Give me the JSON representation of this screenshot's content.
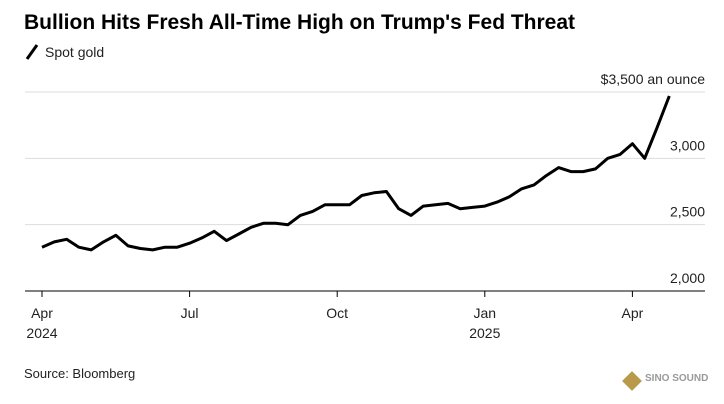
{
  "chart_data": {
    "type": "line",
    "title": "Bullion Hits Fresh All-Time High on Trump's Fed Threat",
    "source": "Source: Bloomberg",
    "watermark": "SINO SOUND",
    "x": [
      "2024-04",
      "2024-04",
      "2024-04",
      "2024-04",
      "2024-05",
      "2024-05",
      "2024-05",
      "2024-05",
      "2024-06",
      "2024-06",
      "2024-06",
      "2024-06",
      "2024-07",
      "2024-07",
      "2024-07",
      "2024-07",
      "2024-08",
      "2024-08",
      "2024-08",
      "2024-08",
      "2024-09",
      "2024-09",
      "2024-09",
      "2024-09",
      "2024-10",
      "2024-10",
      "2024-10",
      "2024-10",
      "2024-11",
      "2024-11",
      "2024-11",
      "2024-11",
      "2024-12",
      "2024-12",
      "2024-12",
      "2024-12",
      "2025-01",
      "2025-01",
      "2025-01",
      "2025-01",
      "2025-02",
      "2025-02",
      "2025-02",
      "2025-02",
      "2025-03",
      "2025-03",
      "2025-03",
      "2025-03",
      "2025-04",
      "2025-04",
      "2025-04",
      "2025-04"
    ],
    "series": [
      {
        "name": "Spot gold",
        "color": "#000000",
        "values": [
          2330,
          2370,
          2390,
          2330,
          2310,
          2370,
          2420,
          2340,
          2320,
          2310,
          2330,
          2330,
          2360,
          2400,
          2450,
          2380,
          2430,
          2480,
          2510,
          2510,
          2500,
          2570,
          2600,
          2650,
          2650,
          2650,
          2720,
          2740,
          2750,
          2620,
          2570,
          2640,
          2650,
          2660,
          2620,
          2630,
          2640,
          2670,
          2710,
          2770,
          2800,
          2870,
          2930,
          2900,
          2900,
          2920,
          3000,
          3030,
          3110,
          3000,
          3230,
          3470
        ]
      }
    ],
    "xticks": [
      {
        "value": "2024-04",
        "label": "Apr",
        "year": "2024"
      },
      {
        "value": "2024-07",
        "label": "Jul"
      },
      {
        "value": "2024-10",
        "label": "Oct"
      },
      {
        "value": "2025-01",
        "label": "Jan",
        "year": "2025"
      },
      {
        "value": "2025-04",
        "label": "Apr"
      }
    ],
    "ylim": [
      2000,
      3500
    ],
    "yticks": [
      {
        "value": 2000,
        "label": "2,000"
      },
      {
        "value": 2500,
        "label": "2,500"
      },
      {
        "value": 3000,
        "label": "3,000"
      },
      {
        "value": 3500,
        "label": "$3,500 an ounce"
      }
    ],
    "grid": true
  }
}
